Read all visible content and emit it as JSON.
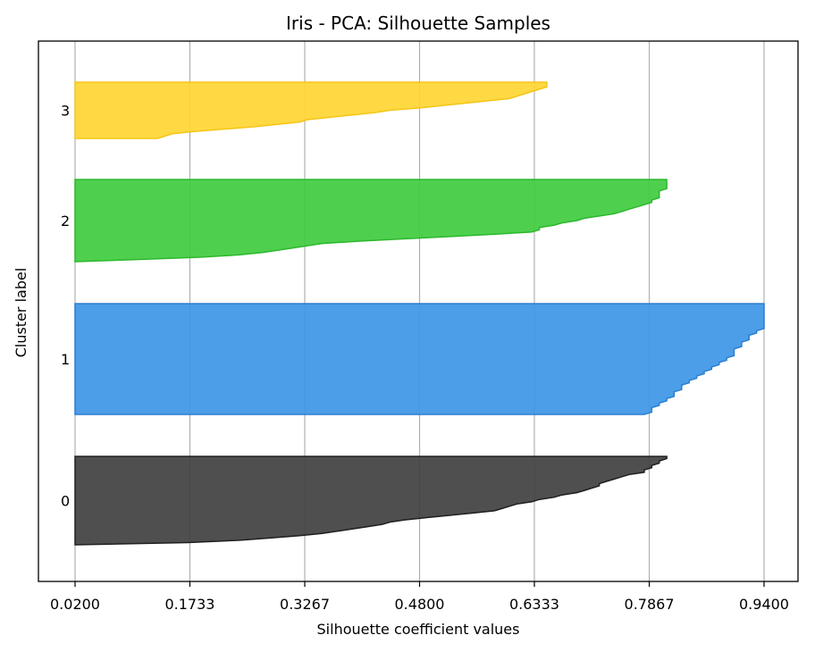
{
  "chart_data": {
    "type": "area",
    "title": "Iris - PCA: Silhouette Samples",
    "xlabel": "Silhouette coefficient values",
    "ylabel": "Cluster label",
    "xlim": [
      0.02,
      0.94
    ],
    "xticks": [
      "0.0200",
      "0.1733",
      "0.3267",
      "0.4800",
      "0.6333",
      "0.7867",
      "0.9400"
    ],
    "grid": "vertical",
    "series": [
      {
        "name": "0",
        "color": "#404040",
        "edge": "#202020",
        "count": 40,
        "values": [
          0.81,
          0.81,
          0.8,
          0.8,
          0.79,
          0.79,
          0.78,
          0.78,
          0.76,
          0.75,
          0.74,
          0.73,
          0.72,
          0.72,
          0.71,
          0.7,
          0.69,
          0.67,
          0.66,
          0.64,
          0.63,
          0.61,
          0.6,
          0.59,
          0.58,
          0.55,
          0.52,
          0.49,
          0.46,
          0.44,
          0.43,
          0.41,
          0.39,
          0.37,
          0.35,
          0.32,
          0.28,
          0.24,
          0.17,
          0.02
        ]
      },
      {
        "name": "1",
        "color": "#3d96e6",
        "edge": "#2b7fd0",
        "count": 50,
        "values": [
          0.94,
          0.94,
          0.94,
          0.94,
          0.94,
          0.94,
          0.94,
          0.94,
          0.94,
          0.94,
          0.94,
          0.94,
          0.93,
          0.93,
          0.92,
          0.92,
          0.92,
          0.91,
          0.91,
          0.91,
          0.9,
          0.9,
          0.9,
          0.9,
          0.89,
          0.89,
          0.88,
          0.88,
          0.87,
          0.87,
          0.86,
          0.86,
          0.85,
          0.85,
          0.84,
          0.84,
          0.83,
          0.83,
          0.83,
          0.82,
          0.82,
          0.82,
          0.81,
          0.81,
          0.8,
          0.8,
          0.79,
          0.79,
          0.79,
          0.78
        ]
      },
      {
        "name": "2",
        "color": "#3fcc3f",
        "edge": "#2db82d",
        "count": 37,
        "values": [
          0.81,
          0.81,
          0.81,
          0.81,
          0.81,
          0.8,
          0.8,
          0.8,
          0.8,
          0.79,
          0.79,
          0.78,
          0.77,
          0.76,
          0.75,
          0.74,
          0.72,
          0.7,
          0.69,
          0.67,
          0.66,
          0.64,
          0.64,
          0.63,
          0.58,
          0.52,
          0.46,
          0.4,
          0.35,
          0.33,
          0.31,
          0.29,
          0.27,
          0.24,
          0.19,
          0.11,
          0.02
        ]
      },
      {
        "name": "3",
        "color": "#ffd633",
        "edge": "#f5c518",
        "count": 25,
        "values": [
          0.65,
          0.65,
          0.65,
          0.64,
          0.63,
          0.62,
          0.61,
          0.6,
          0.57,
          0.54,
          0.51,
          0.48,
          0.44,
          0.42,
          0.39,
          0.36,
          0.33,
          0.32,
          0.29,
          0.26,
          0.22,
          0.18,
          0.15,
          0.14,
          0.13
        ]
      }
    ]
  }
}
